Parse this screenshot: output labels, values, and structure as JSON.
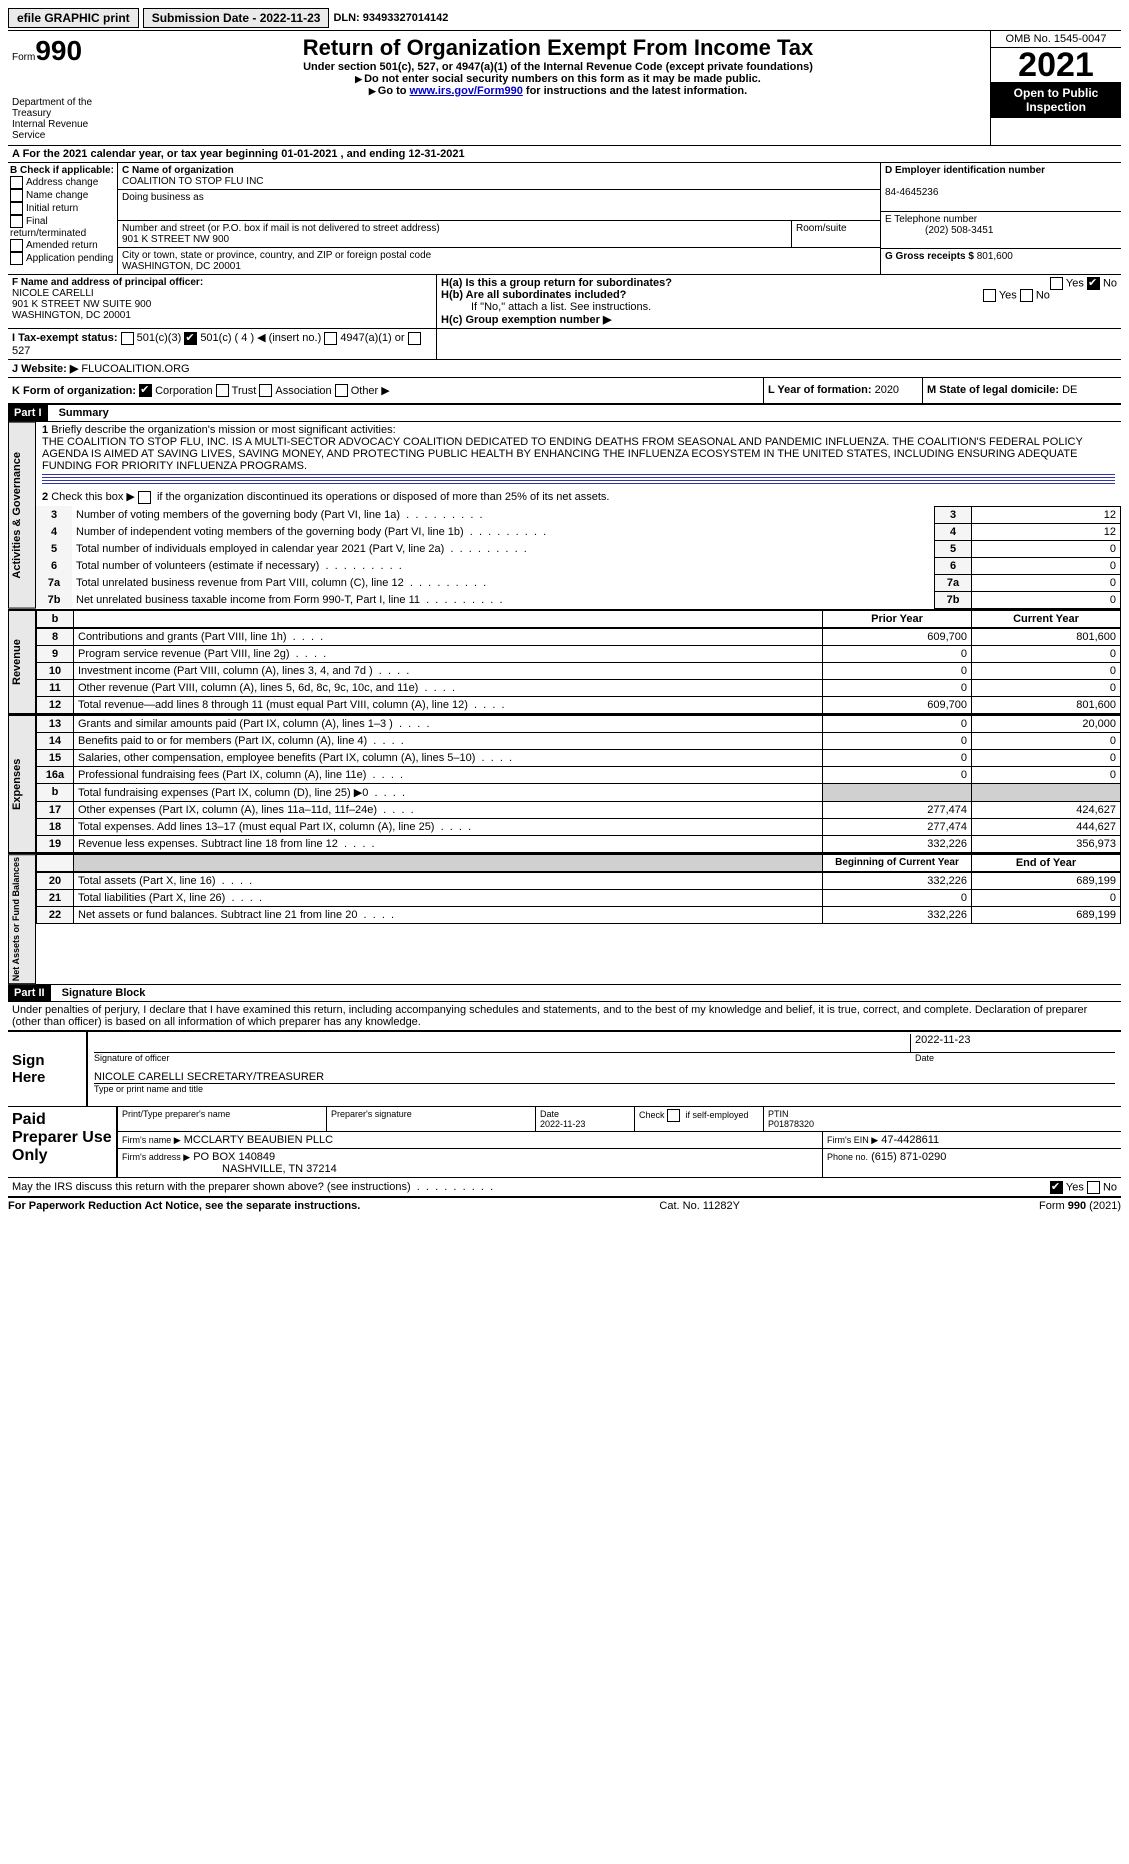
{
  "top": {
    "efile": "efile GRAPHIC print",
    "submission": "Submission Date - 2022-11-23",
    "dln": "DLN: 93493327014142"
  },
  "header": {
    "form_prefix": "Form",
    "form_no": "990",
    "title": "Return of Organization Exempt From Income Tax",
    "subtitle": "Under section 501(c), 527, or 4947(a)(1) of the Internal Revenue Code (except private foundations)",
    "ssn_note": "Do not enter social security numbers on this form as it may be made public.",
    "goto": "Go to ",
    "goto_link": "www.irs.gov/Form990",
    "goto_tail": " for instructions and the latest information.",
    "dept": "Department of the Treasury",
    "irs": "Internal Revenue Service",
    "omb": "OMB No. 1545-0047",
    "year": "2021",
    "open": "Open to Public Inspection"
  },
  "section_a": {
    "prefix": "A For the 2021 calendar year, or tax year beginning ",
    "begin": "01-01-2021",
    "mid": " , and ending ",
    "end": "12-31-2021"
  },
  "b": {
    "hdr": "B Check if applicable:",
    "opts": [
      "Address change",
      "Name change",
      "Initial return",
      "Final return/terminated",
      "Amended return",
      "Application pending"
    ]
  },
  "c": {
    "name_lbl": "C Name of organization",
    "name": "COALITION TO STOP FLU INC",
    "dba_lbl": "Doing business as",
    "street_lbl": "Number and street (or P.O. box if mail is not delivered to street address)",
    "street": "901 K STREET NW 900",
    "room_lbl": "Room/suite",
    "city_lbl": "City or town, state or province, country, and ZIP or foreign postal code",
    "city": "WASHINGTON, DC  20001"
  },
  "d": {
    "lbl": "D Employer identification number",
    "val": "84-4645236"
  },
  "e": {
    "lbl": "E Telephone number",
    "val": "(202) 508-3451"
  },
  "g": {
    "lbl": "G Gross receipts $",
    "val": "801,600"
  },
  "f": {
    "lbl": "F  Name and address of principal officer:",
    "name": "NICOLE CARELLI",
    "addr1": "901 K STREET NW SUITE 900",
    "addr2": "WASHINGTON, DC  20001"
  },
  "h": {
    "a": "H(a)  Is this a group return for subordinates?",
    "b": "H(b)  Are all subordinates included?",
    "b_note": "If \"No,\" attach a list. See instructions.",
    "c": "H(c)  Group exemption number ▶",
    "yes": "Yes",
    "no": "No"
  },
  "i": {
    "lbl": "I  Tax-exempt status:",
    "o1": "501(c)(3)",
    "o2": "501(c) ( 4 ) ◀ (insert no.)",
    "o3": "4947(a)(1) or",
    "o4": "527"
  },
  "j": {
    "lbl": "J  Website: ▶",
    "val": "FLUCOALITION.ORG"
  },
  "k": {
    "lbl": "K Form of organization:",
    "o1": "Corporation",
    "o2": "Trust",
    "o3": "Association",
    "o4": "Other ▶"
  },
  "l": {
    "lbl": "L Year of formation:",
    "val": "2020"
  },
  "m": {
    "lbl": "M State of legal domicile:",
    "val": "DE"
  },
  "part1": {
    "label": "Part I",
    "title": "Summary"
  },
  "mission": {
    "lbl": "Briefly describe the organization's mission or most significant activities:",
    "txt": "THE COALITION TO STOP FLU, INC. IS A MULTI-SECTOR ADVOCACY COALITION DEDICATED TO ENDING DEATHS FROM SEASONAL AND PANDEMIC INFLUENZA. THE COALITION'S FEDERAL POLICY AGENDA IS AIMED AT SAVING LIVES, SAVING MONEY, AND PROTECTING PUBLIC HEALTH BY ENHANCING THE INFLUENZA ECOSYSTEM IN THE UNITED STATES, INCLUDING ENSURING ADEQUATE FUNDING FOR PRIORITY INFLUENZA PROGRAMS."
  },
  "line2": "Check this box ▶       if the organization discontinued its operations or disposed of more than 25% of its net assets.",
  "governance": [
    {
      "n": "3",
      "t": "Number of voting members of the governing body (Part VI, line 1a)",
      "v": "12"
    },
    {
      "n": "4",
      "t": "Number of independent voting members of the governing body (Part VI, line 1b)",
      "v": "12"
    },
    {
      "n": "5",
      "t": "Total number of individuals employed in calendar year 2021 (Part V, line 2a)",
      "v": "0"
    },
    {
      "n": "6",
      "t": "Total number of volunteers (estimate if necessary)",
      "v": "0"
    },
    {
      "n": "7a",
      "t": "Total unrelated business revenue from Part VIII, column (C), line 12",
      "v": "0"
    },
    {
      "n": "7b",
      "t": "Net unrelated business taxable income from Form 990-T, Part I, line 11",
      "v": "0"
    }
  ],
  "col_hdrs": {
    "prior": "Prior Year",
    "current": "Current Year",
    "begin": "Beginning of Current Year",
    "end": "End of Year",
    "b_blank": "b"
  },
  "revenue": [
    {
      "n": "8",
      "t": "Contributions and grants (Part VIII, line 1h)",
      "p": "609,700",
      "c": "801,600"
    },
    {
      "n": "9",
      "t": "Program service revenue (Part VIII, line 2g)",
      "p": "0",
      "c": "0"
    },
    {
      "n": "10",
      "t": "Investment income (Part VIII, column (A), lines 3, 4, and 7d )",
      "p": "0",
      "c": "0"
    },
    {
      "n": "11",
      "t": "Other revenue (Part VIII, column (A), lines 5, 6d, 8c, 9c, 10c, and 11e)",
      "p": "0",
      "c": "0"
    },
    {
      "n": "12",
      "t": "Total revenue—add lines 8 through 11 (must equal Part VIII, column (A), line 12)",
      "p": "609,700",
      "c": "801,600"
    }
  ],
  "expenses": [
    {
      "n": "13",
      "t": "Grants and similar amounts paid (Part IX, column (A), lines 1–3 )",
      "p": "0",
      "c": "20,000"
    },
    {
      "n": "14",
      "t": "Benefits paid to or for members (Part IX, column (A), line 4)",
      "p": "0",
      "c": "0"
    },
    {
      "n": "15",
      "t": "Salaries, other compensation, employee benefits (Part IX, column (A), lines 5–10)",
      "p": "0",
      "c": "0"
    },
    {
      "n": "16a",
      "t": "Professional fundraising fees (Part IX, column (A), line 11e)",
      "p": "0",
      "c": "0"
    },
    {
      "n": "b",
      "t": "Total fundraising expenses (Part IX, column (D), line 25) ▶0",
      "p": "",
      "c": "",
      "grey": true
    },
    {
      "n": "17",
      "t": "Other expenses (Part IX, column (A), lines 11a–11d, 11f–24e)",
      "p": "277,474",
      "c": "424,627"
    },
    {
      "n": "18",
      "t": "Total expenses. Add lines 13–17 (must equal Part IX, column (A), line 25)",
      "p": "277,474",
      "c": "444,627"
    },
    {
      "n": "19",
      "t": "Revenue less expenses. Subtract line 18 from line 12",
      "p": "332,226",
      "c": "356,973"
    }
  ],
  "netassets": [
    {
      "n": "20",
      "t": "Total assets (Part X, line 16)",
      "p": "332,226",
      "c": "689,199"
    },
    {
      "n": "21",
      "t": "Total liabilities (Part X, line 26)",
      "p": "0",
      "c": "0"
    },
    {
      "n": "22",
      "t": "Net assets or fund balances. Subtract line 21 from line 20",
      "p": "332,226",
      "c": "689,199"
    }
  ],
  "vert": {
    "gov": "Activities & Governance",
    "rev": "Revenue",
    "exp": "Expenses",
    "net": "Net Assets or Fund Balances"
  },
  "part2": {
    "label": "Part II",
    "title": "Signature Block"
  },
  "penalties": "Under penalties of perjury, I declare that I have examined this return, including accompanying schedules and statements, and to the best of my knowledge and belief, it is true, correct, and complete. Declaration of preparer (other than officer) is based on all information of which preparer has any knowledge.",
  "sign": {
    "here": "Sign Here",
    "sig_lbl": "Signature of officer",
    "date": "2022-11-23",
    "date_lbl": "Date",
    "name": "NICOLE CARELLI  SECRETARY/TREASURER",
    "name_lbl": "Type or print name and title"
  },
  "paid": {
    "title": "Paid Preparer Use Only",
    "h1": "Print/Type preparer's name",
    "h2": "Preparer's signature",
    "h3": "Date",
    "h3v": "2022-11-23",
    "h4": "Check       if self-employed",
    "h5": "PTIN",
    "ptin": "P01878320",
    "firm_lbl": "Firm's name    ▶",
    "firm": "MCCLARTY BEAUBIEN PLLC",
    "ein_lbl": "Firm's EIN ▶",
    "ein": "47-4428611",
    "addr_lbl": "Firm's address ▶",
    "addr1": "PO BOX 140849",
    "addr2": "NASHVILLE, TN  37214",
    "phone_lbl": "Phone no.",
    "phone": "(615) 871-0290"
  },
  "discuss": "May the IRS discuss this return with the preparer shown above? (see instructions)",
  "footer": {
    "l": "For Paperwork Reduction Act Notice, see the separate instructions.",
    "c": "Cat. No. 11282Y",
    "r": "Form 990 (2021)"
  }
}
